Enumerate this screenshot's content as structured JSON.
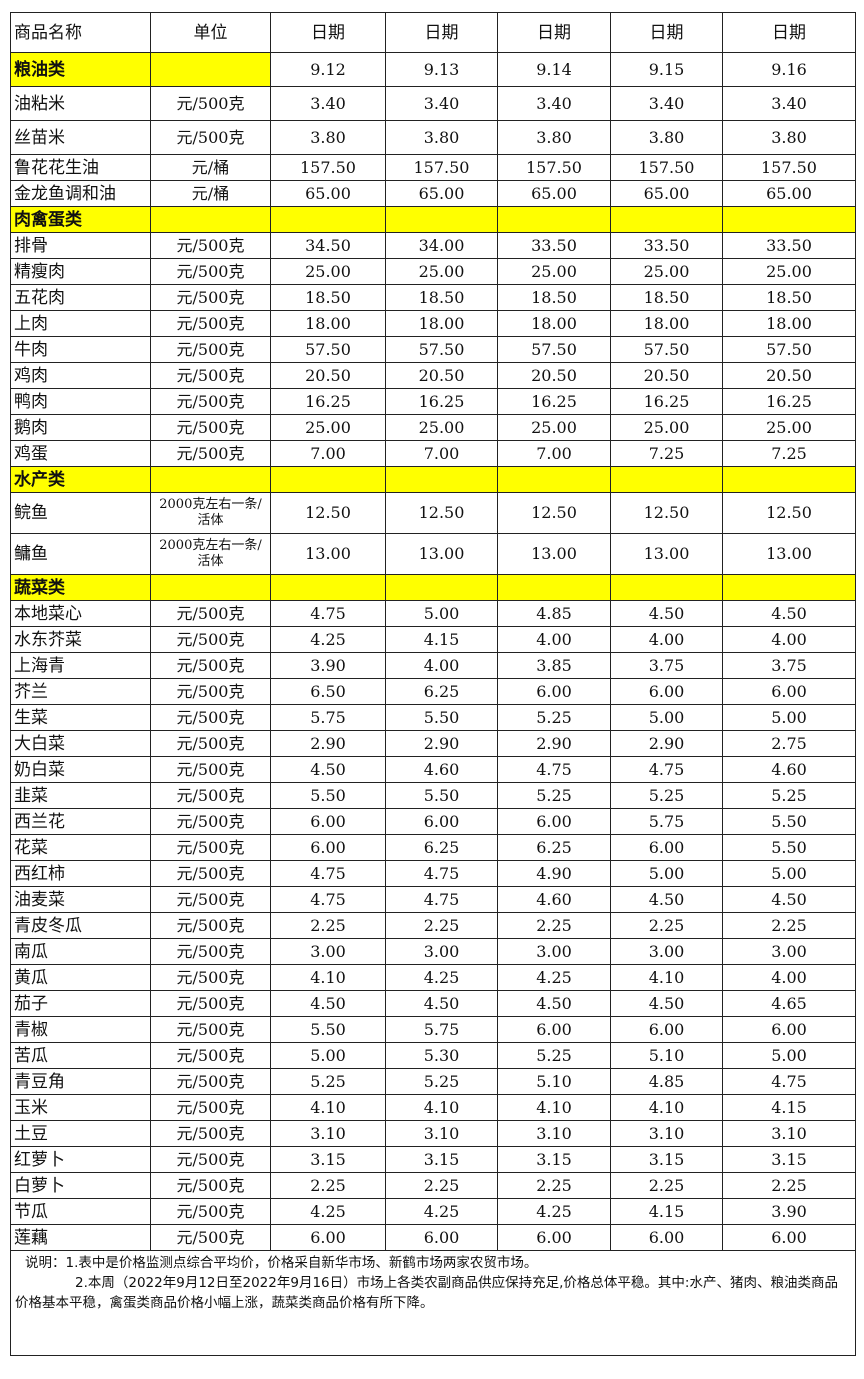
{
  "header": {
    "name": "商品名称",
    "unit": "单位",
    "dates": [
      "日期",
      "日期",
      "日期",
      "日期",
      "日期"
    ]
  },
  "sections": [
    {
      "category": "粮油类",
      "dates": [
        "9.12",
        "9.13",
        "9.14",
        "9.15",
        "9.16"
      ],
      "rows": [
        {
          "name": "油粘米",
          "unit": "元/500克",
          "prices": [
            "3.40",
            "3.40",
            "3.40",
            "3.40",
            "3.40"
          ],
          "tall": true
        },
        {
          "name": "丝苗米",
          "unit": "元/500克",
          "prices": [
            "3.80",
            "3.80",
            "3.80",
            "3.80",
            "3.80"
          ],
          "tall": true
        },
        {
          "name": "鲁花花生油",
          "unit": "元/桶",
          "prices": [
            "157.50",
            "157.50",
            "157.50",
            "157.50",
            "157.50"
          ]
        },
        {
          "name": "金龙鱼调和油",
          "unit": "元/桶",
          "prices": [
            "65.00",
            "65.00",
            "65.00",
            "65.00",
            "65.00"
          ]
        }
      ]
    },
    {
      "category": "肉禽蛋类",
      "rows": [
        {
          "name": "排骨",
          "unit": "元/500克",
          "prices": [
            "34.50",
            "34.00",
            "33.50",
            "33.50",
            "33.50"
          ]
        },
        {
          "name": "精瘦肉",
          "unit": "元/500克",
          "prices": [
            "25.00",
            "25.00",
            "25.00",
            "25.00",
            "25.00"
          ]
        },
        {
          "name": "五花肉",
          "unit": "元/500克",
          "prices": [
            "18.50",
            "18.50",
            "18.50",
            "18.50",
            "18.50"
          ]
        },
        {
          "name": "上肉",
          "unit": "元/500克",
          "prices": [
            "18.00",
            "18.00",
            "18.00",
            "18.00",
            "18.00"
          ]
        },
        {
          "name": "牛肉",
          "unit": "元/500克",
          "prices": [
            "57.50",
            "57.50",
            "57.50",
            "57.50",
            "57.50"
          ]
        },
        {
          "name": "鸡肉",
          "unit": "元/500克",
          "prices": [
            "20.50",
            "20.50",
            "20.50",
            "20.50",
            "20.50"
          ]
        },
        {
          "name": "鸭肉",
          "unit": "元/500克",
          "prices": [
            "16.25",
            "16.25",
            "16.25",
            "16.25",
            "16.25"
          ]
        },
        {
          "name": "鹅肉",
          "unit": "元/500克",
          "prices": [
            "25.00",
            "25.00",
            "25.00",
            "25.00",
            "25.00"
          ]
        },
        {
          "name": "鸡蛋",
          "unit": "元/500克",
          "prices": [
            "7.00",
            "7.00",
            "7.00",
            "7.25",
            "7.25"
          ]
        }
      ]
    },
    {
      "category": "水产类",
      "rows": [
        {
          "name": "鲩鱼",
          "unit": "2000克左右一条/活体",
          "prices": [
            "12.50",
            "12.50",
            "12.50",
            "12.50",
            "12.50"
          ],
          "fish": true
        },
        {
          "name": "鳙鱼",
          "unit": "2000克左右一条/活体",
          "prices": [
            "13.00",
            "13.00",
            "13.00",
            "13.00",
            "13.00"
          ],
          "fish": true
        }
      ]
    },
    {
      "category": "蔬菜类",
      "rows": [
        {
          "name": "本地菜心",
          "unit": "元/500克",
          "prices": [
            "4.75",
            "5.00",
            "4.85",
            "4.50",
            "4.50"
          ]
        },
        {
          "name": "水东芥菜",
          "unit": "元/500克",
          "prices": [
            "4.25",
            "4.15",
            "4.00",
            "4.00",
            "4.00"
          ]
        },
        {
          "name": "上海青",
          "unit": "元/500克",
          "prices": [
            "3.90",
            "4.00",
            "3.85",
            "3.75",
            "3.75"
          ]
        },
        {
          "name": "芥兰",
          "unit": "元/500克",
          "prices": [
            "6.50",
            "6.25",
            "6.00",
            "6.00",
            "6.00"
          ]
        },
        {
          "name": "生菜",
          "unit": "元/500克",
          "prices": [
            "5.75",
            "5.50",
            "5.25",
            "5.00",
            "5.00"
          ]
        },
        {
          "name": "大白菜",
          "unit": "元/500克",
          "prices": [
            "2.90",
            "2.90",
            "2.90",
            "2.90",
            "2.75"
          ]
        },
        {
          "name": "奶白菜",
          "unit": "元/500克",
          "prices": [
            "4.50",
            "4.60",
            "4.75",
            "4.75",
            "4.60"
          ]
        },
        {
          "name": "韭菜",
          "unit": "元/500克",
          "prices": [
            "5.50",
            "5.50",
            "5.25",
            "5.25",
            "5.25"
          ]
        },
        {
          "name": "西兰花",
          "unit": "元/500克",
          "prices": [
            "6.00",
            "6.00",
            "6.00",
            "5.75",
            "5.50"
          ]
        },
        {
          "name": "花菜",
          "unit": "元/500克",
          "prices": [
            "6.00",
            "6.25",
            "6.25",
            "6.00",
            "5.50"
          ]
        },
        {
          "name": "西红柿",
          "unit": "元/500克",
          "prices": [
            "4.75",
            "4.75",
            "4.90",
            "5.00",
            "5.00"
          ]
        },
        {
          "name": "油麦菜",
          "unit": "元/500克",
          "prices": [
            "4.75",
            "4.75",
            "4.60",
            "4.50",
            "4.50"
          ]
        },
        {
          "name": "青皮冬瓜",
          "unit": "元/500克",
          "prices": [
            "2.25",
            "2.25",
            "2.25",
            "2.25",
            "2.25"
          ]
        },
        {
          "name": "南瓜",
          "unit": "元/500克",
          "prices": [
            "3.00",
            "3.00",
            "3.00",
            "3.00",
            "3.00"
          ]
        },
        {
          "name": "黄瓜",
          "unit": "元/500克",
          "prices": [
            "4.10",
            "4.25",
            "4.25",
            "4.10",
            "4.00"
          ]
        },
        {
          "name": "茄子",
          "unit": "元/500克",
          "prices": [
            "4.50",
            "4.50",
            "4.50",
            "4.50",
            "4.65"
          ]
        },
        {
          "name": "青椒",
          "unit": "元/500克",
          "prices": [
            "5.50",
            "5.75",
            "6.00",
            "6.00",
            "6.00"
          ]
        },
        {
          "name": "苦瓜",
          "unit": "元/500克",
          "prices": [
            "5.00",
            "5.30",
            "5.25",
            "5.10",
            "5.00"
          ]
        },
        {
          "name": "青豆角",
          "unit": "元/500克",
          "prices": [
            "5.25",
            "5.25",
            "5.10",
            "4.85",
            "4.75"
          ]
        },
        {
          "name": "玉米",
          "unit": "元/500克",
          "prices": [
            "4.10",
            "4.10",
            "4.10",
            "4.10",
            "4.15"
          ]
        },
        {
          "name": "土豆",
          "unit": "元/500克",
          "prices": [
            "3.10",
            "3.10",
            "3.10",
            "3.10",
            "3.10"
          ]
        },
        {
          "name": "红萝卜",
          "unit": "元/500克",
          "prices": [
            "3.15",
            "3.15",
            "3.15",
            "3.15",
            "3.15"
          ]
        },
        {
          "name": "白萝卜",
          "unit": "元/500克",
          "prices": [
            "2.25",
            "2.25",
            "2.25",
            "2.25",
            "2.25"
          ]
        },
        {
          "name": "节瓜",
          "unit": "元/500克",
          "prices": [
            "4.25",
            "4.25",
            "4.25",
            "4.15",
            "3.90"
          ]
        },
        {
          "name": "莲藕",
          "unit": "元/500克",
          "prices": [
            "6.00",
            "6.00",
            "6.00",
            "6.00",
            "6.00"
          ]
        }
      ]
    }
  ],
  "notes": {
    "line1": "说明：1.表中是价格监测点综合平均价，价格采自新华市场、新鹤市场两家农贸市场。",
    "line2": "2.本周（2022年9月12日至2022年9月16日）市场上各类农副商品供应保持充足,价格总体平稳。其中:水产、猪肉、粮油类商品价格基本平稳，禽蛋类商品价格小幅上涨，蔬菜类商品价格有所下降。"
  },
  "colors": {
    "category_highlight": "#ffff00",
    "border": "#222222"
  }
}
